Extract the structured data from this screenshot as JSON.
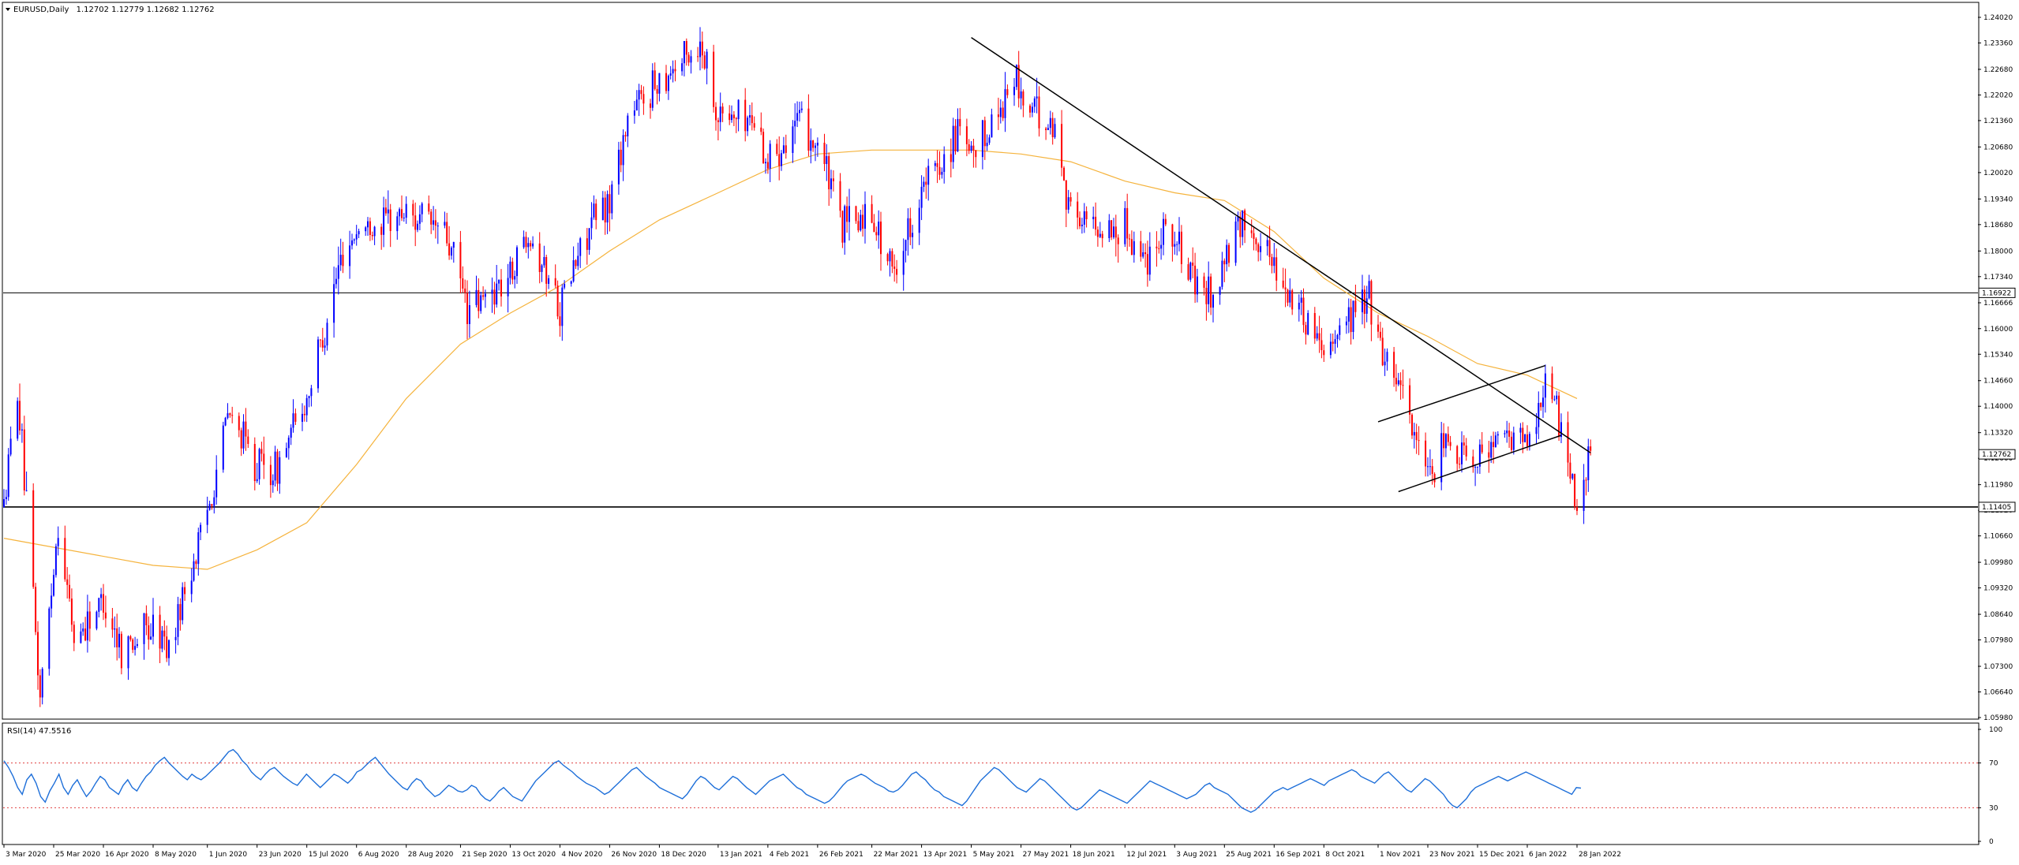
{
  "header": {
    "symbol": "EURUSD,Daily",
    "ohlc": "1.12702 1.12779 1.12682 1.12762"
  },
  "rsi_header": {
    "label": "RSI(14) 47.5516"
  },
  "colors": {
    "bull": "#0000ff",
    "bear": "#ff0000",
    "ma": "#f5b33c",
    "rsi": "#1e6fd9",
    "level_line": "#e04040",
    "trend": "#000000"
  },
  "chart_data": [
    {
      "type": "candlestick",
      "title": "",
      "ylim": [
        1.0598,
        1.2404
      ],
      "y_ticks": [
        "1.24020",
        "1.23360",
        "1.22680",
        "1.22020",
        "1.21360",
        "1.20680",
        "1.20020",
        "1.19340",
        "1.18680",
        "1.18000",
        "1.17340",
        "1.16666",
        "1.16000",
        "1.15340",
        "1.14660",
        "1.14000",
        "1.13320",
        "1.12660",
        "1.11980",
        "1.11320",
        "1.10660",
        "1.09980",
        "1.09320",
        "1.08640",
        "1.07980",
        "1.07300",
        "1.06640",
        "1.05980"
      ],
      "x_ticks": [
        "3 Mar 2020",
        "25 Mar 2020",
        "16 Apr 2020",
        "8 May 2020",
        "1 Jun 2020",
        "23 Jun 2020",
        "15 Jul 2020",
        "6 Aug 2020",
        "28 Aug 2020",
        "21 Sep 2020",
        "13 Oct 2020",
        "4 Nov 2020",
        "26 Nov 2020",
        "18 Dec 2020",
        "13 Jan 2021",
        "4 Feb 2021",
        "26 Feb 2021",
        "22 Mar 2021",
        "13 Apr 2021",
        "5 May 2021",
        "27 May 2021",
        "18 Jun 2021",
        "12 Jul 2021",
        "3 Aug 2021",
        "25 Aug 2021",
        "16 Sep 2021",
        "8 Oct 2021",
        "1 Nov 2021",
        "23 Nov 2021",
        "15 Dec 2021",
        "6 Jan 2022",
        "28 Jan 2022"
      ],
      "price_path": [
        {
          "date": "3 Mar 2020",
          "price": 1.114
        },
        {
          "date": "9 Mar 2020",
          "price": 1.145
        },
        {
          "date": "19 Mar 2020",
          "price": 1.065
        },
        {
          "date": "27 Mar 2020",
          "price": 1.11
        },
        {
          "date": "3 Apr 2020",
          "price": 1.08
        },
        {
          "date": "16 Apr 2020",
          "price": 1.09
        },
        {
          "date": "24 Apr 2020",
          "price": 1.078
        },
        {
          "date": "8 May 2020",
          "price": 1.083
        },
        {
          "date": "15 May 2020",
          "price": 1.078
        },
        {
          "date": "1 Jun 2020",
          "price": 1.113
        },
        {
          "date": "10 Jun 2020",
          "price": 1.138
        },
        {
          "date": "23 Jun 2020",
          "price": 1.125
        },
        {
          "date": "1 Jul 2020",
          "price": 1.123
        },
        {
          "date": "15 Jul 2020",
          "price": 1.142
        },
        {
          "date": "31 Jul 2020",
          "price": 1.18
        },
        {
          "date": "6 Aug 2020",
          "price": 1.185
        },
        {
          "date": "28 Aug 2020",
          "price": 1.19
        },
        {
          "date": "14 Sep 2020",
          "price": 1.185
        },
        {
          "date": "25 Sep 2020",
          "price": 1.164
        },
        {
          "date": "13 Oct 2020",
          "price": 1.174
        },
        {
          "date": "21 Oct 2020",
          "price": 1.186
        },
        {
          "date": "4 Nov 2020",
          "price": 1.166
        },
        {
          "date": "16 Nov 2020",
          "price": 1.185
        },
        {
          "date": "26 Nov 2020",
          "price": 1.193
        },
        {
          "date": "4 Dec 2020",
          "price": 1.214
        },
        {
          "date": "18 Dec 2020",
          "price": 1.225
        },
        {
          "date": "6 Jan 2021",
          "price": 1.233
        },
        {
          "date": "13 Jan 2021",
          "price": 1.215
        },
        {
          "date": "29 Jan 2021",
          "price": 1.214
        },
        {
          "date": "4 Feb 2021",
          "price": 1.203
        },
        {
          "date": "16 Feb 2021",
          "price": 1.213
        },
        {
          "date": "26 Feb 2021",
          "price": 1.208
        },
        {
          "date": "9 Mar 2021",
          "price": 1.186
        },
        {
          "date": "22 Mar 2021",
          "price": 1.19
        },
        {
          "date": "31 Mar 2021",
          "price": 1.174
        },
        {
          "date": "13 Apr 2021",
          "price": 1.195
        },
        {
          "date": "29 Apr 2021",
          "price": 1.21
        },
        {
          "date": "5 May 2021",
          "price": 1.203
        },
        {
          "date": "25 May 2021",
          "price": 1.225
        },
        {
          "date": "27 May 2021",
          "price": 1.219
        },
        {
          "date": "11 Jun 2021",
          "price": 1.211
        },
        {
          "date": "18 Jun 2021",
          "price": 1.19
        },
        {
          "date": "30 Jun 2021",
          "price": 1.186
        },
        {
          "date": "12 Jul 2021",
          "price": 1.186
        },
        {
          "date": "21 Jul 2021",
          "price": 1.178
        },
        {
          "date": "30 Jul 2021",
          "price": 1.188
        },
        {
          "date": "11 Aug 2021",
          "price": 1.172
        },
        {
          "date": "20 Aug 2021",
          "price": 1.168
        },
        {
          "date": "25 Aug 2021",
          "price": 1.177
        },
        {
          "date": "3 Sep 2021",
          "price": 1.188
        },
        {
          "date": "16 Sep 2021",
          "price": 1.177
        },
        {
          "date": "22 Sep 2021",
          "price": 1.169
        },
        {
          "date": "8 Oct 2021",
          "price": 1.156
        },
        {
          "date": "15 Oct 2021",
          "price": 1.16
        },
        {
          "date": "28 Oct 2021",
          "price": 1.169
        },
        {
          "date": "1 Nov 2021",
          "price": 1.156
        },
        {
          "date": "10 Nov 2021",
          "price": 1.148
        },
        {
          "date": "24 Nov 2021",
          "price": 1.119
        },
        {
          "date": "29 Nov 2021",
          "price": 1.13
        },
        {
          "date": "15 Dec 2021",
          "price": 1.128
        },
        {
          "date": "31 Dec 2021",
          "price": 1.132
        },
        {
          "date": "6 Jan 2022",
          "price": 1.13
        },
        {
          "date": "14 Jan 2022",
          "price": 1.147
        },
        {
          "date": "21 Jan 2022",
          "price": 1.134
        },
        {
          "date": "28 Jan 2022",
          "price": 1.115
        },
        {
          "date": "3 Feb 2022",
          "price": 1.1276
        }
      ],
      "moving_average": [
        {
          "date": "3 Mar 2020",
          "price": 1.106
        },
        {
          "date": "8 May 2020",
          "price": 1.099
        },
        {
          "date": "1 Jun 2020",
          "price": 1.098
        },
        {
          "date": "23 Jun 2020",
          "price": 1.103
        },
        {
          "date": "15 Jul 2020",
          "price": 1.11
        },
        {
          "date": "6 Aug 2020",
          "price": 1.125
        },
        {
          "date": "28 Aug 2020",
          "price": 1.142
        },
        {
          "date": "21 Sep 2020",
          "price": 1.156
        },
        {
          "date": "13 Oct 2020",
          "price": 1.164
        },
        {
          "date": "4 Nov 2020",
          "price": 1.171
        },
        {
          "date": "26 Nov 2020",
          "price": 1.18
        },
        {
          "date": "18 Dec 2020",
          "price": 1.188
        },
        {
          "date": "13 Jan 2021",
          "price": 1.195
        },
        {
          "date": "4 Feb 2021",
          "price": 1.201
        },
        {
          "date": "26 Feb 2021",
          "price": 1.205
        },
        {
          "date": "22 Mar 2021",
          "price": 1.206
        },
        {
          "date": "13 Apr 2021",
          "price": 1.206
        },
        {
          "date": "5 May 2021",
          "price": 1.206
        },
        {
          "date": "27 May 2021",
          "price": 1.205
        },
        {
          "date": "18 Jun 2021",
          "price": 1.203
        },
        {
          "date": "12 Jul 2021",
          "price": 1.198
        },
        {
          "date": "3 Aug 2021",
          "price": 1.195
        },
        {
          "date": "25 Aug 2021",
          "price": 1.193
        },
        {
          "date": "16 Sep 2021",
          "price": 1.185
        },
        {
          "date": "8 Oct 2021",
          "price": 1.173
        },
        {
          "date": "1 Nov 2021",
          "price": 1.164
        },
        {
          "date": "23 Nov 2021",
          "price": 1.158
        },
        {
          "date": "15 Dec 2021",
          "price": 1.151
        },
        {
          "date": "6 Jan 2022",
          "price": 1.148
        },
        {
          "date": "28 Jan 2022",
          "price": 1.142
        }
      ],
      "horizontal_levels": [
        {
          "price": 1.16922,
          "label": "1.16922"
        },
        {
          "price": 1.11405,
          "label": "1.11405"
        }
      ],
      "current_price": {
        "price": 1.12762,
        "label": "1.12762"
      },
      "trendlines": [
        {
          "from": {
            "date": "5 May 2021",
            "price": 1.235
          },
          "to": {
            "date": "3 Feb 2022",
            "price": 1.128
          }
        },
        {
          "from": {
            "date": "1 Nov 2021",
            "price": 1.136
          },
          "to": {
            "date": "14 Jan 2022",
            "price": 1.1505
          }
        },
        {
          "from": {
            "date": "10 Nov 2021",
            "price": 1.118
          },
          "to": {
            "date": "21 Jan 2022",
            "price": 1.1325
          }
        }
      ]
    },
    {
      "type": "line",
      "title": "",
      "ylim": [
        0,
        100
      ],
      "y_ticks": [
        "100",
        "70",
        "30",
        "0"
      ],
      "levels": [
        70,
        30
      ],
      "series": [
        {
          "values": [
            72,
            66,
            58,
            48,
            42,
            55,
            60,
            52,
            40,
            35,
            45,
            52,
            60,
            48,
            42,
            50,
            55,
            47,
            40,
            45,
            52,
            58,
            55,
            48,
            45,
            42,
            50,
            55,
            48,
            45,
            52,
            58,
            62,
            68,
            72,
            75,
            70,
            66,
            62,
            58,
            55,
            60,
            57,
            55,
            58,
            62,
            66,
            70,
            75,
            80,
            82,
            78,
            72,
            68,
            62,
            58,
            55,
            60,
            64,
            66,
            62,
            58,
            55,
            52,
            50,
            55,
            60,
            56,
            52,
            48,
            52,
            56,
            60,
            58,
            55,
            52,
            56,
            62,
            64,
            68,
            72,
            75,
            70,
            65,
            60,
            56,
            52,
            48,
            46,
            52,
            56,
            54,
            48,
            44,
            40,
            42,
            46,
            50,
            48,
            45,
            44,
            46,
            50,
            48,
            42,
            38,
            36,
            40,
            45,
            48,
            44,
            40,
            38,
            36,
            42,
            48,
            54,
            58,
            62,
            66,
            70,
            72,
            68,
            65,
            62,
            58,
            55,
            52,
            50,
            48,
            45,
            42,
            44,
            48,
            52,
            56,
            60,
            64,
            66,
            62,
            58,
            55,
            52,
            48,
            46,
            44,
            42,
            40,
            38,
            42,
            48,
            54,
            58,
            56,
            52,
            48,
            46,
            50,
            54,
            58,
            56,
            52,
            48,
            45,
            42,
            46,
            50,
            54,
            56,
            58,
            60,
            56,
            52,
            48,
            46,
            42,
            40,
            38,
            36,
            34,
            36,
            40,
            45,
            50,
            54,
            56,
            58,
            60,
            58,
            55,
            52,
            50,
            48,
            45,
            44,
            46,
            50,
            55,
            60,
            62,
            58,
            55,
            50,
            46,
            44,
            40,
            38,
            36,
            34,
            32,
            36,
            42,
            48,
            54,
            58,
            62,
            66,
            64,
            60,
            56,
            52,
            48,
            46,
            44,
            48,
            52,
            56,
            54,
            50,
            46,
            42,
            38,
            34,
            30,
            28,
            30,
            34,
            38,
            42,
            46,
            44,
            42,
            40,
            38,
            36,
            34,
            38,
            42,
            46,
            50,
            54,
            52,
            50,
            48,
            46,
            44,
            42,
            40,
            38,
            40,
            42,
            46,
            50,
            52,
            48,
            46,
            44,
            42,
            38,
            34,
            30,
            28,
            26,
            28,
            32,
            36,
            40,
            44,
            46,
            48,
            46,
            48,
            50,
            52,
            54,
            56,
            54,
            52,
            50,
            54,
            56,
            58,
            60,
            62,
            64,
            62,
            58,
            56,
            54,
            52,
            56,
            60,
            62,
            58,
            54,
            50,
            46,
            44,
            48,
            52,
            56,
            54,
            50,
            46,
            42,
            36,
            32,
            30,
            34,
            38,
            44,
            48,
            50,
            52,
            54,
            56,
            58,
            56,
            54,
            56,
            58,
            60,
            62,
            60,
            58,
            56,
            54,
            52,
            50,
            48,
            46,
            44,
            42,
            48,
            47.5
          ]
        }
      ]
    }
  ]
}
